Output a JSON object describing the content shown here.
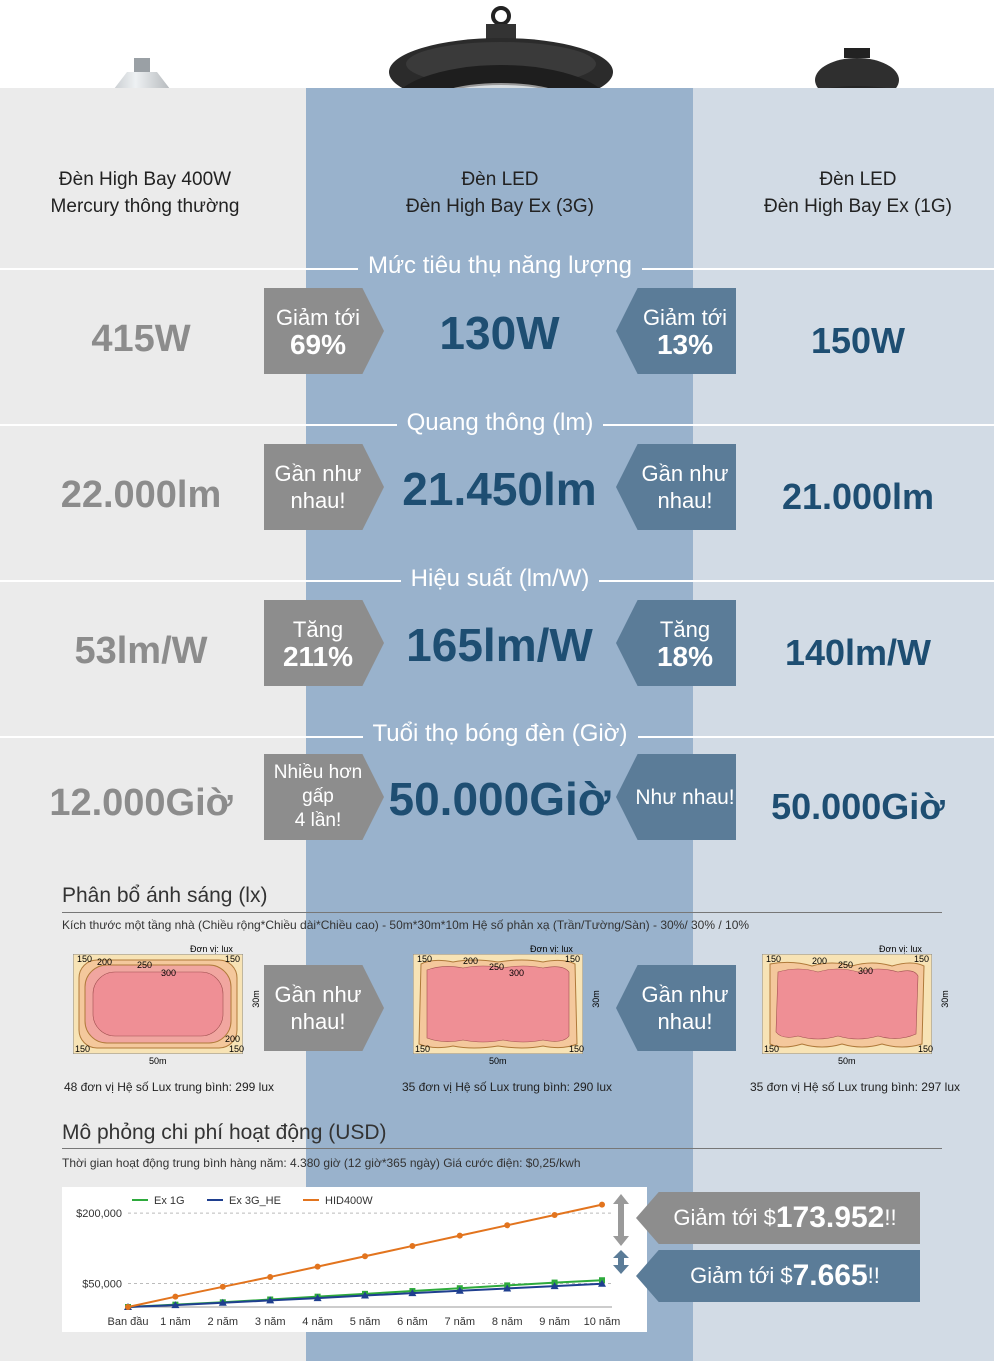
{
  "products": [
    {
      "line1": "Đèn High Bay 400W",
      "line2": "Mercury thông thường"
    },
    {
      "line1": "Đèn LED",
      "line2": "Đèn High Bay Ex (3G)"
    },
    {
      "line1": "Đèn LED",
      "line2": "Đèn High Bay Ex (1G)"
    }
  ],
  "sections": [
    {
      "title": "Mức tiêu thụ năng lượng",
      "left": "415W",
      "mid": "130W",
      "right": "150W",
      "arrow_left": {
        "line1": "Giảm tới",
        "line2": "69%"
      },
      "arrow_right": {
        "line1": "Giảm tới",
        "line2": "13%"
      }
    },
    {
      "title": "Quang thông (lm)",
      "left": "22.000lm",
      "mid": "21.450lm",
      "right": "21.000lm",
      "arrow_left": {
        "line1": "Gần như",
        "line2": "nhau!"
      },
      "arrow_right": {
        "line1": "Gần như",
        "line2": "nhau!"
      }
    },
    {
      "title": "Hiệu suất (lm/W)",
      "left": "53lm/W",
      "mid": "165lm/W",
      "right": "140lm/W",
      "arrow_left": {
        "line1": "Tăng",
        "line2": "211%"
      },
      "arrow_right": {
        "line1": "Tăng",
        "line2": "18%"
      }
    },
    {
      "title": "Tuổi thọ bóng đèn (Giờ)",
      "left": "12.000Giờ",
      "mid": "50.000Giờ",
      "right": "50.000Giờ",
      "arrow_left": {
        "line1": "Nhiều hơn gấp",
        "line2": "4 lần!"
      },
      "arrow_right": {
        "line1": "Như nhau!",
        "line2": ""
      }
    }
  ],
  "light": {
    "heading": "Phân bổ ánh sáng (lx)",
    "note": "Kích thước một tầng nhà (Chiều rộng*Chiều dài*Chiều cao) - 50m*30m*10m    Hệ số phản xạ (Trần/Tường/Sàn) - 30%/ 30% / 10%",
    "unit": "Đơn vị: lux",
    "width_label": "50m",
    "height_label": "30m",
    "arrow_left": {
      "line1": "Gần như",
      "line2": "nhau!"
    },
    "arrow_right": {
      "line1": "Gần như",
      "line2": "nhau!"
    },
    "maps": [
      {
        "caption": "48 đơn vị  Hệ số Lux trung bình: 299 lux",
        "c150": "150",
        "c200": "200",
        "c250": "250",
        "c300": "300"
      },
      {
        "caption": "35 đơn vị  Hệ số Lux trung bình: 290 lux",
        "c150": "150",
        "c200": "200",
        "c250": "250",
        "c300": "300"
      },
      {
        "caption": "35 đơn vị  Hệ số Lux trung bình: 297 lux",
        "c150": "150",
        "c200": "200",
        "c250": "250",
        "c300": "300"
      }
    ]
  },
  "cost": {
    "heading": "Mô phỏng chi phí hoạt động (USD)",
    "note": "Thời gian hoạt động trung bình hàng năm: 4.380 giờ (12 giờ*365 ngày)    Giá cước điện: $0,25/kwh",
    "saving1_prefix": "Giảm tới $",
    "saving1_value": "173.952",
    "saving1_suffix": "!!",
    "saving2_prefix": "Giảm tới $",
    "saving2_value": "7.665",
    "saving2_suffix": "!!"
  },
  "chart_data": {
    "type": "line",
    "categories": [
      "Ban đầu",
      "1 năm",
      "2 năm",
      "3 năm",
      "4 năm",
      "5 năm",
      "6 năm",
      "7 năm",
      "8 năm",
      "9 năm",
      "10 năm"
    ],
    "y_ticks": [
      "$200,000",
      "$50,000"
    ],
    "series": [
      {
        "name": "Ex 1G",
        "color": "#2eaa3c",
        "values": [
          0,
          5000,
          10000,
          16000,
          22000,
          28000,
          34000,
          40000,
          46000,
          52000,
          57000
        ]
      },
      {
        "name": "Ex 3G_HE",
        "color": "#1f3f8f",
        "values": [
          0,
          4000,
          9000,
          14000,
          19000,
          24500,
          29500,
          34500,
          39500,
          44500,
          49500
        ]
      },
      {
        "name": "HID400W",
        "color": "#e2741e",
        "values": [
          0,
          22000,
          43000,
          64000,
          86000,
          108000,
          130000,
          152000,
          174000,
          196000,
          218000
        ]
      }
    ],
    "ylim": [
      0,
      230000
    ]
  },
  "colors": {
    "left_col": "#ebebeb",
    "mid_col": "#99b2cc",
    "right_col": "#d2dbe5",
    "grey_arrow": "#8d8d8d",
    "blue_arrow": "#5b7c98",
    "dark_value": "#1e4e72"
  }
}
